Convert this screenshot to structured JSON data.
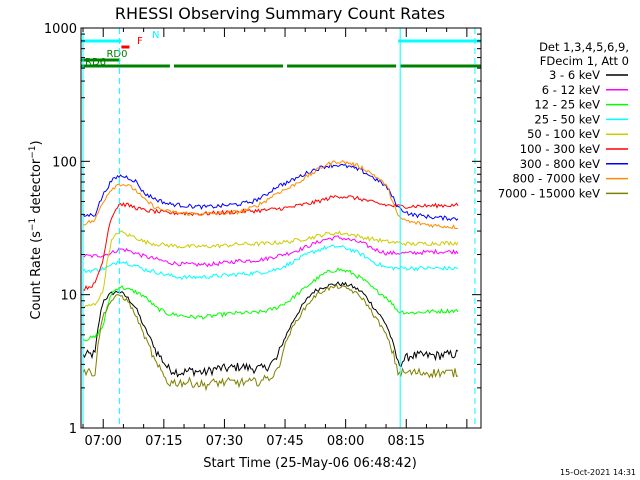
{
  "chart_data": {
    "type": "line",
    "title": "RHESSI Observing Summary Count Rates",
    "xlabel": "Start Time (25-May-06 06:48:42)",
    "ylabel": "Count Rate (s⁻¹ detector⁻¹)",
    "ylabel_main": "Count Rate (s",
    "ylabel_sup1": "−1",
    "ylabel_mid": " detector",
    "ylabel_sup2": "−1",
    "ylabel_end": ")",
    "yscale": "log",
    "ylim": [
      1,
      1000
    ],
    "xlim_minutes": [
      -5.5,
      93.5
    ],
    "x_units": "minutes after 07:00",
    "x_ticks": [
      {
        "v": 0,
        "label": "07:00"
      },
      {
        "v": 15,
        "label": "07:15"
      },
      {
        "v": 30,
        "label": "07:30"
      },
      {
        "v": 45,
        "label": "07:45"
      },
      {
        "v": 60,
        "label": "08:00"
      },
      {
        "v": 75,
        "label": "08:15"
      }
    ],
    "y_ticks": [
      {
        "v": 1,
        "label": "1"
      },
      {
        "v": 10,
        "label": "10"
      },
      {
        "v": 100,
        "label": "100"
      },
      {
        "v": 1000,
        "label": "1000"
      }
    ],
    "legend_position": "right",
    "legend_header": [
      "Det 1,3,4,5,6,9,",
      "FDecim 1, Att 0"
    ],
    "series": [
      {
        "name": "3 - 6 keV",
        "color": "#000000",
        "values": [
          3.5,
          3.6,
          9,
          10.2,
          10.6,
          9.5,
          8,
          5.8,
          3.8,
          2.8,
          2.6,
          2.7,
          2.6,
          2.8,
          2.8,
          2.9,
          2.8,
          2.8,
          3.3,
          5.5,
          8,
          10.5,
          11.6,
          12.1,
          11.8,
          10.5,
          8,
          6,
          3,
          3.5,
          3.5,
          3.6
        ]
      },
      {
        "name": "6 - 12 keV",
        "color": "#ff00ff",
        "values": [
          19.5,
          19.5,
          19.8,
          20.5,
          22,
          21.5,
          20.5,
          19.5,
          18.5,
          17.5,
          17,
          16.8,
          16.8,
          17,
          17.5,
          18,
          18,
          18.5,
          19.5,
          20.5,
          22,
          24,
          26,
          27,
          25.8,
          24.5,
          22,
          20.5,
          20.5,
          20.5,
          21,
          21
        ]
      },
      {
        "name": "12 - 25 keV",
        "color": "#00ff00",
        "values": [
          4.6,
          4.8,
          5.8,
          10.2,
          11.5,
          11,
          10.5,
          9.8,
          8,
          7.2,
          7,
          6.8,
          6.8,
          7,
          7.2,
          7.3,
          7.3,
          7.5,
          8,
          9,
          10.6,
          12.6,
          14.5,
          15.5,
          14.8,
          13.2,
          11,
          9.6,
          7.5,
          7.3,
          7.5,
          7.6
        ]
      },
      {
        "name": "25 - 50 keV",
        "color": "#00ffff",
        "values": [
          15,
          15.3,
          15.6,
          16.5,
          18,
          17.3,
          16.5,
          15.5,
          14.8,
          14,
          13.5,
          13.5,
          13.6,
          13.8,
          14,
          14.3,
          14.5,
          14.8,
          15.5,
          17,
          19,
          21,
          22.5,
          23,
          22,
          20,
          17.5,
          16,
          15.8,
          15.8,
          15.8,
          15.7
        ]
      },
      {
        "name": "50 - 100 keV",
        "color": "#cccc00",
        "values": [
          8,
          8.5,
          10.5,
          25,
          30,
          28,
          27,
          25,
          24,
          23.5,
          23,
          23,
          23,
          23.2,
          23.5,
          24,
          24,
          24.2,
          24.5,
          25,
          26,
          27,
          28.5,
          29,
          28.5,
          27,
          26,
          25,
          24.5,
          24,
          24.3,
          24.5
        ]
      },
      {
        "name": "100 - 300 keV",
        "color": "#ff0000",
        "values": [
          11,
          12,
          18,
          38,
          48,
          47,
          45,
          43,
          42,
          41,
          41,
          40.5,
          40.5,
          41,
          41.5,
          42,
          42.5,
          43,
          44,
          45,
          47,
          49,
          52,
          55,
          54,
          52,
          49,
          47,
          46,
          46,
          46.5,
          47
        ]
      },
      {
        "name": "300 - 800 keV",
        "color": "#0000ff",
        "values": [
          39,
          40,
          56,
          71,
          78,
          76,
          71,
          58,
          52,
          48,
          47,
          46,
          45.5,
          46,
          47,
          48,
          50,
          55,
          65,
          70,
          78,
          86,
          92,
          94,
          91,
          85,
          75,
          65,
          45,
          40,
          38,
          37
        ]
      },
      {
        "name": "800 - 7000 keV",
        "color": "#ff8c00",
        "values": [
          34,
          36,
          50,
          62,
          68,
          66,
          61,
          52,
          45,
          42,
          41,
          40.5,
          40.3,
          40.6,
          41,
          42,
          45,
          50,
          58,
          63,
          72,
          82,
          94,
          100,
          97,
          90,
          79,
          66,
          38,
          35,
          33,
          32
        ]
      },
      {
        "name": "7000 - 15000 keV",
        "color": "#808000",
        "values": [
          2.7,
          2.6,
          7,
          9,
          10,
          9,
          7,
          5,
          3,
          2.2,
          2.2,
          2.2,
          2.1,
          2.2,
          2.2,
          2.2,
          2.2,
          2.3,
          2.6,
          5,
          7.2,
          9.5,
          11,
          11.5,
          11,
          9.5,
          7,
          5,
          2.6,
          2.6,
          2.6,
          2.6
        ]
      }
    ],
    "x_samples": [
      -5,
      -2,
      0,
      2,
      4,
      6,
      8,
      10,
      13,
      16,
      19,
      22,
      25,
      28,
      31,
      34,
      37,
      40,
      43,
      46,
      49,
      52,
      55,
      58,
      61,
      64,
      67,
      70,
      73,
      76,
      82,
      88
    ],
    "flags": [
      {
        "label": "N",
        "color": "#00ffff",
        "segments": [
          [
            -5.5,
            4.5
          ],
          [
            73,
            93.5
          ]
        ]
      },
      {
        "label": "F",
        "color": "#ff0000",
        "segments": [
          [
            4.5,
            6.5
          ]
        ]
      },
      {
        "label": "RD0",
        "color": "#008000",
        "segments": [
          [
            -5.5,
            4.2
          ]
        ]
      },
      {
        "label": "RD6",
        "color": "#008000",
        "segments": [
          [
            -5.5,
            16.5
          ],
          [
            17.5,
            44.5
          ],
          [
            45.5,
            72.5
          ],
          [
            73.5,
            93.5
          ]
        ]
      }
    ],
    "night_markers_minutes": [
      -5,
      73.5
    ],
    "saa_markers_minutes": [
      4,
      92
    ],
    "annotation": "15-Oct-2021 14:31"
  }
}
